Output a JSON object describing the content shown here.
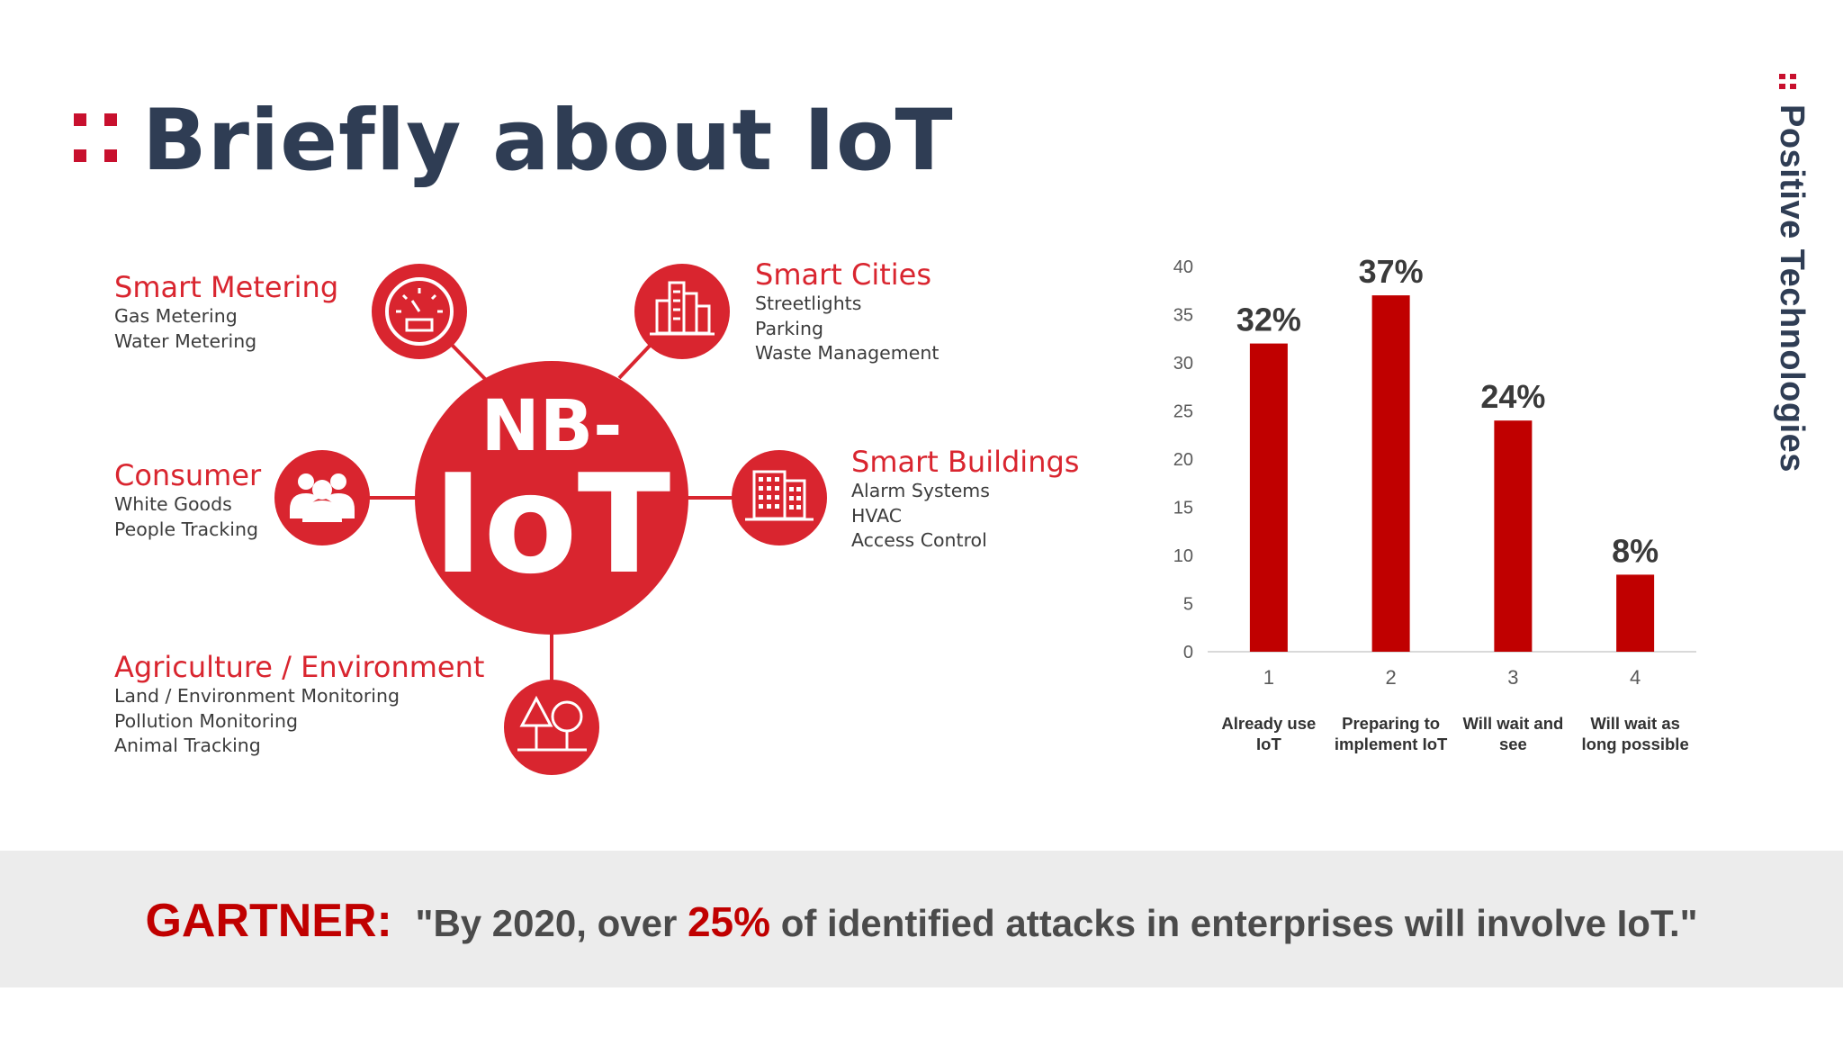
{
  "title": "Briefly about IoT",
  "brand": "Positive Technologies",
  "colors": {
    "accent": "#d9252f",
    "bar": "#c00000",
    "title": "#2f3d54"
  },
  "diagram": {
    "hub_line1": "NB-",
    "hub_line2": "IoT",
    "categories": [
      {
        "title": "Smart Metering",
        "items": [
          "Gas Metering",
          "Water Metering"
        ],
        "icon": "gauge-icon"
      },
      {
        "title": "Smart Cities",
        "items": [
          "Streetlights",
          "Parking",
          "Waste Management"
        ],
        "icon": "city-icon"
      },
      {
        "title": "Consumer",
        "items": [
          "White Goods",
          "People Tracking"
        ],
        "icon": "people-icon"
      },
      {
        "title": "Smart Buildings",
        "items": [
          "Alarm Systems",
          "HVAC",
          "Access Control"
        ],
        "icon": "building-icon"
      },
      {
        "title": "Agriculture / Environment",
        "items": [
          "Land / Environment Monitoring",
          "Pollution Monitoring",
          "Animal Tracking"
        ],
        "icon": "trees-icon"
      }
    ]
  },
  "chart_data": {
    "type": "bar",
    "categories": [
      "1",
      "2",
      "3",
      "4"
    ],
    "category_labels": [
      "Already use IoT",
      "Preparing to implement IoT",
      "Will wait and see",
      "Will wait as long possible"
    ],
    "values": [
      32,
      37,
      24,
      8
    ],
    "data_labels": [
      "32%",
      "37%",
      "24%",
      "8%"
    ],
    "yticks": [
      "0",
      "5",
      "10",
      "15",
      "20",
      "25",
      "30",
      "35",
      "40"
    ],
    "ylim": [
      0,
      40
    ],
    "title": "",
    "xlabel": "",
    "ylabel": "",
    "grid": false
  },
  "footer": {
    "source": "GARTNER:",
    "quote_pre": "\"By 2020, over ",
    "quote_highlight": "25%",
    "quote_post": " of identified attacks in enterprises will involve IoT.\""
  }
}
